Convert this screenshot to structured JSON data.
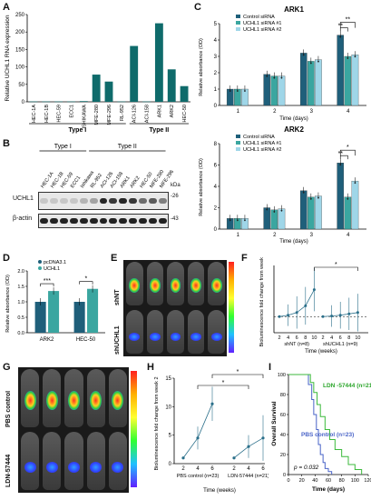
{
  "panels": {
    "A": {
      "label": "A",
      "ylabel": "Relative UCHL1 RNA expression",
      "groups": [
        "Type I",
        "Type II"
      ],
      "chart_data": {
        "type": "bar",
        "categories": [
          "HEC-1A",
          "HEC-1B",
          "HEC-59",
          "ECC1",
          "ISHIKAWA",
          "MFE-280",
          "MFE-296",
          "RL-952",
          "ACI-126",
          "ACI-158",
          "ARK1",
          "ARK2",
          "HEC-50"
        ],
        "values": [
          1,
          1,
          1,
          1,
          2,
          78,
          58,
          1,
          160,
          1,
          225,
          93,
          45
        ],
        "ylim": [
          0,
          250
        ],
        "yticks": [
          "0",
          "50",
          "100",
          "150",
          "200",
          "250"
        ],
        "color": "#0f6b6b"
      }
    },
    "B": {
      "label": "B",
      "groups": [
        "Type I",
        "Type II"
      ],
      "lanes": [
        "HEC-1A",
        "HEC-1B",
        "HEC-59",
        "ECC1",
        "Ishikawa",
        "RL-952",
        "ACI-126",
        "ACI-158",
        "ARK1",
        "ARK2",
        "HEC-50",
        "MFE-280",
        "MFE-296"
      ],
      "rows": [
        "UCHL1",
        "β-actin"
      ],
      "kda_label": "kDa",
      "markers": [
        "-26",
        "-43"
      ],
      "uchl1_levels": [
        0.1,
        0.1,
        0.1,
        0.1,
        0.2,
        0.3,
        1,
        0.9,
        1,
        0.9,
        0.6,
        0.7,
        0.5
      ]
    },
    "C": {
      "label": "C",
      "charts": [
        {
          "title": "ARK1",
          "ylabel": "Relative absorbance (OD)",
          "xlabel": "Time (days)",
          "legend": [
            "Control siRNA",
            "UCHL1 siRNA #1",
            "UCHL1 siRNA #2"
          ],
          "chart_data": {
            "type": "bar",
            "categories": [
              "1",
              "2",
              "3",
              "4"
            ],
            "series": [
              {
                "name": "Control siRNA",
                "values": [
                  1.0,
                  1.9,
                  3.2,
                  4.3
                ],
                "color": "#1f5f7a"
              },
              {
                "name": "UCHL1 siRNA #1",
                "values": [
                  1.0,
                  1.8,
                  2.7,
                  3.0
                ],
                "color": "#3aa6a0"
              },
              {
                "name": "UCHL1 siRNA #2",
                "values": [
                  1.0,
                  1.8,
                  2.8,
                  3.1
                ],
                "color": "#9fd6e8"
              }
            ],
            "ylim": [
              0,
              5
            ],
            "yticks": [
              "0",
              "1",
              "2",
              "3",
              "4",
              "5"
            ]
          },
          "sig": [
            "**",
            "**"
          ]
        },
        {
          "title": "ARK2",
          "ylabel": "Relative absorbance (OD)",
          "xlabel": "Time (days)",
          "legend": [
            "Control siRNA",
            "UCHL1 siRNA #1",
            "UCHL1 siRNA #2"
          ],
          "chart_data": {
            "type": "bar",
            "categories": [
              "1",
              "2",
              "3",
              "4"
            ],
            "series": [
              {
                "name": "Control siRNA",
                "values": [
                  1.0,
                  2.0,
                  3.6,
                  6.2
                ],
                "color": "#1f5f7a"
              },
              {
                "name": "UCHL1 siRNA #1",
                "values": [
                  1.0,
                  1.8,
                  3.0,
                  3.0
                ],
                "color": "#3aa6a0"
              },
              {
                "name": "UCHL1 siRNA #2",
                "values": [
                  1.0,
                  1.9,
                  3.1,
                  4.5
                ],
                "color": "#9fd6e8"
              }
            ],
            "ylim": [
              0,
              8
            ],
            "yticks": [
              "0",
              "2",
              "4",
              "6",
              "8"
            ]
          },
          "sig": [
            "*",
            "**"
          ]
        }
      ]
    },
    "D": {
      "label": "D",
      "ylabel": "Relative absorbance (OD)",
      "legend": [
        "pcDNA3.1",
        "UCHL1"
      ],
      "chart_data": {
        "type": "bar",
        "categories": [
          "ARK2",
          "HEC-50"
        ],
        "series": [
          {
            "name": "pcDNA3.1",
            "values": [
              1.0,
              1.0
            ],
            "color": "#1f5f7a"
          },
          {
            "name": "UCHL1",
            "values": [
              1.35,
              1.42
            ],
            "color": "#3aa6a0"
          }
        ],
        "ylim": [
          0,
          2.0
        ],
        "yticks": [
          "0.0",
          "0.5",
          "1.0",
          "1.5",
          "2.0"
        ]
      },
      "sig": [
        "***",
        "*"
      ]
    },
    "E": {
      "label": "E",
      "rows": [
        "shNT",
        "shUCHL1"
      ]
    },
    "F": {
      "label": "F",
      "ylabel": "Bioluminescence fold change from week 2",
      "xlabel": "Time (weeks)",
      "group_labels": [
        "shNT (n=8)",
        "shUCHL1 (n=9)"
      ],
      "xticks": [
        "2",
        "4",
        "6",
        "8",
        "10",
        "2",
        "4",
        "6",
        "8",
        "10"
      ],
      "chart_data": {
        "type": "line",
        "series": [
          {
            "name": "shNT (n=8)",
            "x": [
              2,
              4,
              6,
              8,
              10
            ],
            "values": [
              1,
              1.5,
              2.5,
              5,
              11
            ],
            "err": [
              0,
              4,
              6,
              7,
              8
            ]
          },
          {
            "name": "shUCHL1 (n=9)",
            "x": [
              2,
              4,
              6,
              8,
              10
            ],
            "values": [
              1,
              1.2,
              1.5,
              2,
              2.5
            ],
            "err": [
              0,
              4,
              5,
              6,
              7
            ]
          }
        ],
        "ylim": [
          -5,
          20
        ],
        "sig": "*"
      }
    },
    "G": {
      "label": "G",
      "rows": [
        "PBS control",
        "LDN-57444"
      ]
    },
    "H": {
      "label": "H",
      "ylabel": "Bioluminescence fold change from week 2",
      "xlabel": "Time (weeks)",
      "group_labels": [
        "PBS control (n=23)",
        "LDN-57444 (n=21)"
      ],
      "xticks": [
        "2",
        "4",
        "6",
        "2",
        "4",
        "6"
      ],
      "chart_data": {
        "type": "line",
        "series": [
          {
            "name": "PBS control (n=23)",
            "x": [
              2,
              4,
              6
            ],
            "values": [
              1,
              4.5,
              10.5
            ],
            "err": [
              0,
              2,
              3
            ]
          },
          {
            "name": "LDN-57444 (n=21)",
            "x": [
              2,
              4,
              6
            ],
            "values": [
              1,
              3,
              4.5
            ],
            "err": [
              0,
              2,
              4
            ]
          }
        ],
        "ylim": [
          0,
          15
        ],
        "yticks": [
          "0",
          "5",
          "10",
          "15"
        ],
        "sig": [
          "*",
          "*"
        ]
      }
    },
    "I": {
      "label": "I",
      "ylabel": "Overall Survival",
      "xlabel": "Time (days)",
      "legend": [
        "LDN -57444 (n=21)",
        "PBS control (n=23)"
      ],
      "pvalue": "p = 0.032",
      "chart_data": {
        "type": "line",
        "series": [
          {
            "name": "PBS control (n=23)",
            "x": [
              0,
              25,
              30,
              35,
              38,
              42,
              45,
              48,
              52,
              55,
              60,
              65
            ],
            "values": [
              100,
              100,
              90,
              75,
              60,
              45,
              30,
              20,
              12,
              6,
              3,
              0
            ],
            "color": "#4a64c8"
          },
          {
            "name": "LDN -57444 (n=21)",
            "x": [
              0,
              28,
              33,
              38,
              43,
              48,
              55,
              62,
              70,
              80,
              90,
              100,
              110
            ],
            "values": [
              100,
              100,
              92,
              82,
              70,
              58,
              45,
              35,
              25,
              18,
              10,
              5,
              0
            ],
            "color": "#3cba3c"
          }
        ],
        "xlim": [
          0,
          120
        ],
        "ylim": [
          0,
          100
        ],
        "xticks": [
          "0",
          "20",
          "40",
          "60",
          "80",
          "100",
          "120"
        ],
        "yticks": [
          "0",
          "20",
          "40",
          "60",
          "80",
          "100"
        ]
      }
    }
  }
}
